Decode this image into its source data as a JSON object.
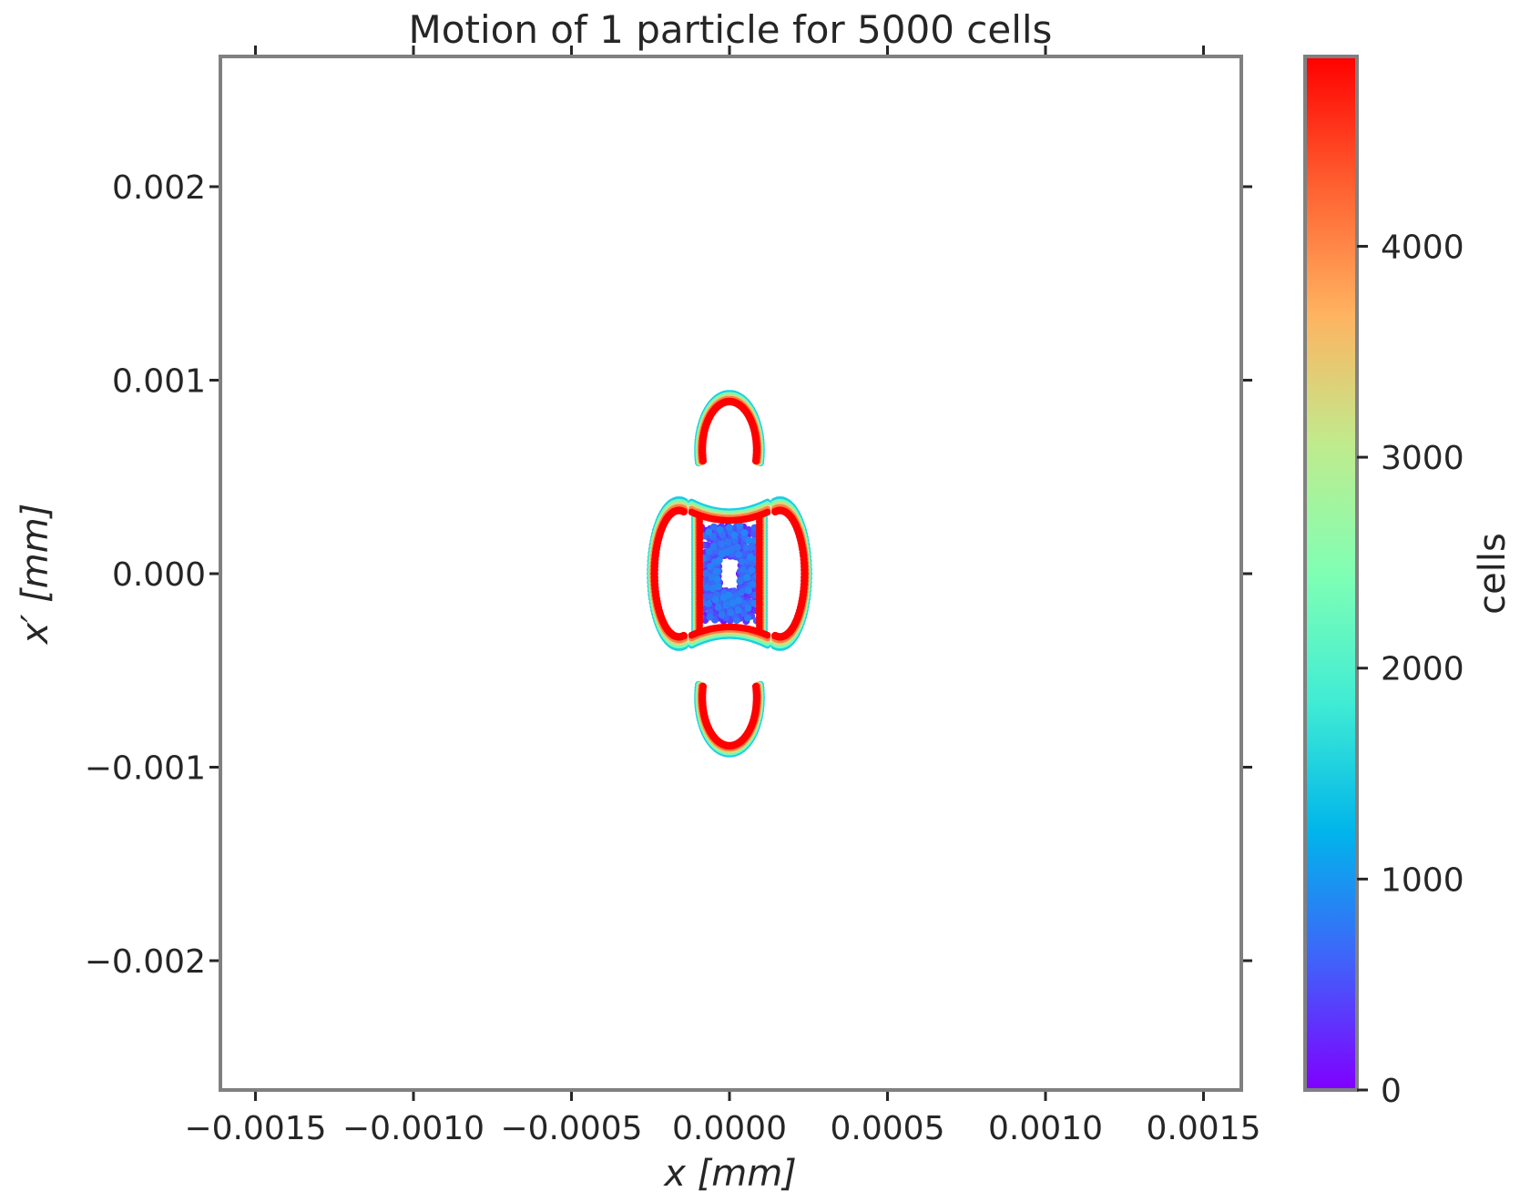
{
  "chart_data": {
    "type": "scatter",
    "title": "Motion of 1 particle for 5000 cells",
    "xlabel": "x [mm]",
    "ylabel": "x′ [mm]",
    "xlim": [
      -0.00161,
      0.00161
    ],
    "ylim": [
      -0.00267,
      0.00267
    ],
    "x_ticks": [
      -0.0015,
      -0.001,
      -0.0005,
      0.0,
      0.0005,
      0.001,
      0.0015
    ],
    "x_tick_labels": [
      "−0.0015",
      "−0.0010",
      "−0.0005",
      "0.0000",
      "0.0005",
      "0.0010",
      "0.0015"
    ],
    "y_ticks": [
      -0.002,
      -0.001,
      0.0,
      0.001,
      0.002
    ],
    "y_tick_labels": [
      "−0.002",
      "−0.001",
      "0.000",
      "0.001",
      "0.002"
    ],
    "grid": false,
    "colorbar": {
      "label": "cells",
      "cmap": "rainbow",
      "range": [
        0,
        4900
      ],
      "ticks": [
        0,
        1000,
        2000,
        3000,
        4000
      ],
      "tick_labels": [
        "0",
        "1000",
        "2000",
        "3000",
        "4000"
      ]
    },
    "series": [
      {
        "cells_range": [
          0,
          900
        ],
        "shape": "rectangular core",
        "x_halfwidth": 9e-05,
        "y_halfwidth": 0.00025,
        "center_hole": {
          "x": 0.0,
          "y": 0.0,
          "x_radius": 2e-05,
          "y_radius": 7e-05
        }
      },
      {
        "cells_range": [
          900,
          1500
        ],
        "shape": "square",
        "x_halfwidth": 0.0001,
        "y_halfwidth": 0.0003
      },
      {
        "cells_range": [
          1500,
          4900
        ],
        "shape": "four-island separatrix",
        "horizontal_islands": {
          "x_center": 0.00016,
          "x_radius": 9e-05,
          "y_radius": 0.00038
        },
        "vertical_islands": {
          "y_center": 0.00064,
          "x_radius": 0.0001,
          "y_radius": 0.00029
        }
      }
    ]
  }
}
